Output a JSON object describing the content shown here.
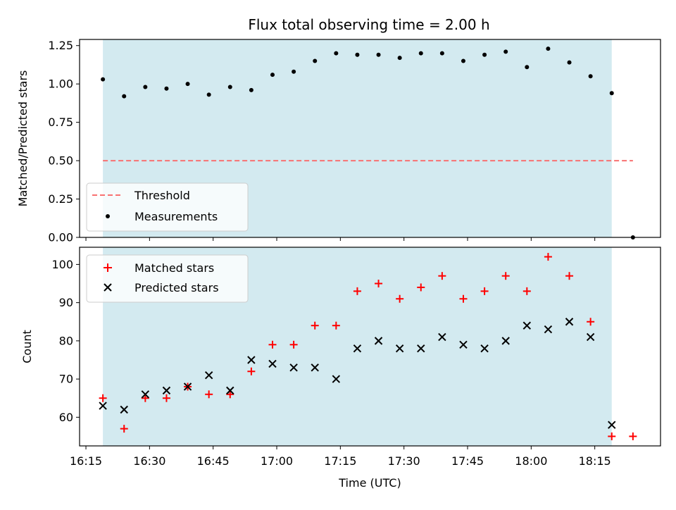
{
  "chart_data": {
    "type": "scatter",
    "title": "Flux total observing time = 2.00 h",
    "xlabel": "Time (UTC)",
    "x_tick_labels": [
      "16:15",
      "16:30",
      "16:45",
      "17:00",
      "17:15",
      "17:30",
      "17:45",
      "18:00",
      "18:15"
    ],
    "x_tick_minutes": [
      975,
      990,
      1005,
      1020,
      1035,
      1050,
      1065,
      1080,
      1095
    ],
    "xlim_minutes": [
      973.5,
      1110.5
    ],
    "times_minutes": [
      979,
      984,
      989,
      994,
      999,
      1004,
      1009,
      1014,
      1019,
      1024,
      1029,
      1034,
      1039,
      1044,
      1049,
      1054,
      1059,
      1064,
      1069,
      1074,
      1079,
      1084,
      1089,
      1094,
      1099,
      1104
    ],
    "observing_window_minutes": [
      979,
      1099
    ],
    "colors": {
      "window": "#d3eaf0",
      "threshold": "#f87171",
      "measurements": "#000000",
      "matched": "#ff0000",
      "predicted": "#000000"
    },
    "panels": [
      {
        "ylabel": "Matched/Predicted stars",
        "ylim": [
          0,
          1.29
        ],
        "y_ticks": [
          0.0,
          0.25,
          0.5,
          0.75,
          1.0,
          1.25
        ],
        "y_tick_labels": [
          "0.00",
          "0.25",
          "0.50",
          "0.75",
          "1.00",
          "1.25"
        ],
        "legend_position": "lower-left",
        "threshold": {
          "name": "Threshold",
          "value": 0.5,
          "x_range_minutes": [
            979,
            1104
          ]
        },
        "series": [
          {
            "name": "Measurements",
            "marker": "dot",
            "values": [
              1.03,
              0.92,
              0.98,
              0.97,
              1.0,
              0.93,
              0.98,
              0.96,
              1.06,
              1.08,
              1.15,
              1.2,
              1.19,
              1.19,
              1.17,
              1.2,
              1.2,
              1.15,
              1.19,
              1.21,
              1.11,
              1.23,
              1.14,
              1.05,
              0.94,
              0.0
            ]
          }
        ]
      },
      {
        "ylabel": "Count",
        "ylim": [
          52.5,
          104.5
        ],
        "y_ticks": [
          60,
          70,
          80,
          90,
          100
        ],
        "y_tick_labels": [
          "60",
          "70",
          "80",
          "90",
          "100"
        ],
        "legend_position": "upper-left",
        "series": [
          {
            "name": "Matched stars",
            "marker": "plus",
            "values": [
              65,
              57,
              65,
              65,
              68,
              66,
              66,
              72,
              79,
              79,
              84,
              84,
              93,
              95,
              91,
              94,
              97,
              91,
              93,
              97,
              93,
              102,
              97,
              85,
              55,
              55
            ]
          },
          {
            "name": "Predicted stars",
            "marker": "x",
            "values": [
              63,
              62,
              66,
              67,
              68,
              71,
              67,
              75,
              74,
              73,
              73,
              70,
              78,
              80,
              78,
              78,
              81,
              79,
              78,
              80,
              84,
              83,
              85,
              81,
              58,
              null
            ]
          }
        ]
      }
    ]
  }
}
